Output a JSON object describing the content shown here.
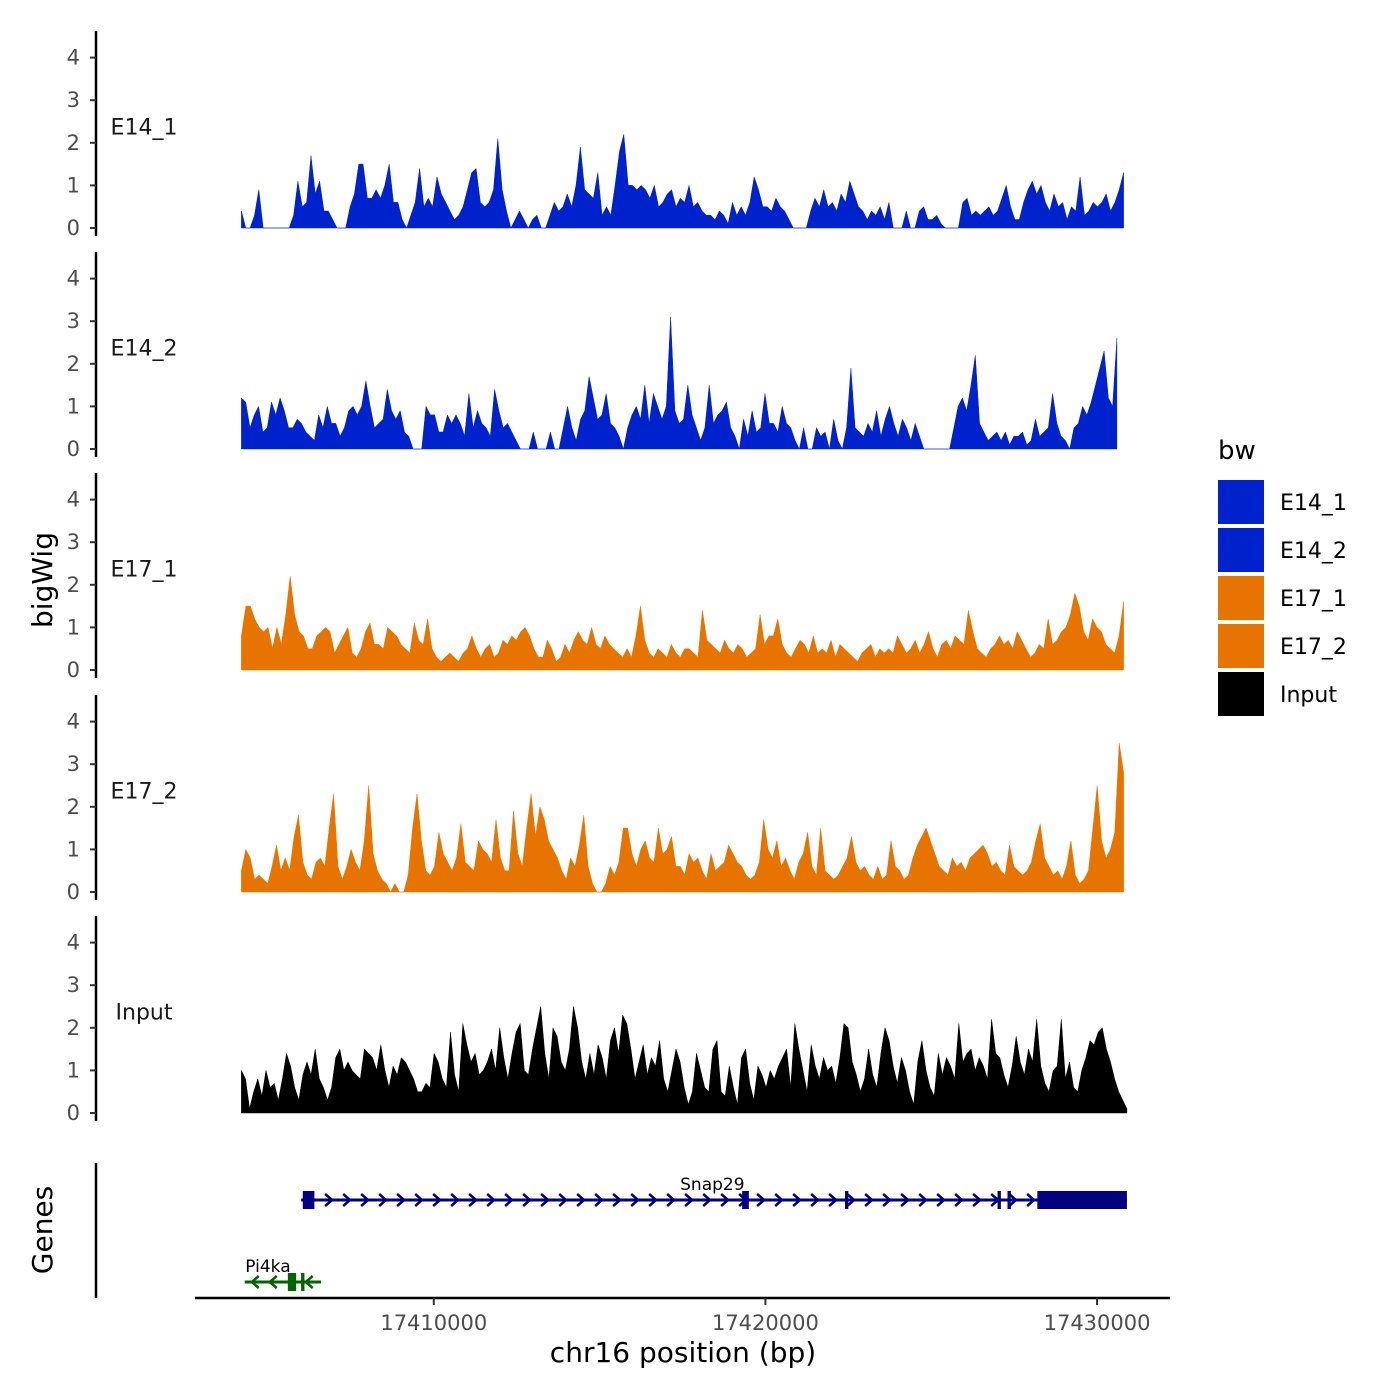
{
  "chart_data": {
    "type": "area",
    "chromosome": "chr16",
    "xlabel": "chr16 position (bp)",
    "ylabel": "bigWig",
    "xlim": [
      17402800,
      17432200
    ],
    "x_ticks": [
      17410000,
      17420000,
      17430000
    ],
    "x_tick_labels": [
      "17410000",
      "17420000",
      "17430000"
    ],
    "ylim": [
      0,
      4.5
    ],
    "y_ticks": [
      0,
      1,
      2,
      3,
      4
    ],
    "y_tick_labels": [
      "0",
      "1",
      "2",
      "3",
      "4"
    ],
    "legend": {
      "title": "bw",
      "position": "right",
      "entries": [
        {
          "label": "E14_1",
          "color": "#0022cc"
        },
        {
          "label": "E14_2",
          "color": "#0022cc"
        },
        {
          "label": "E17_1",
          "color": "#e87400"
        },
        {
          "label": "E17_2",
          "color": "#e87400"
        },
        {
          "label": "Input",
          "color": "#000000"
        }
      ]
    },
    "tracks": [
      {
        "name": "E14_1",
        "color": "#0022cc",
        "start": 17404200,
        "end": 17430800,
        "values": [
          0.4,
          0,
          0,
          0.3,
          0.9,
          0,
          0,
          0,
          0,
          0,
          0,
          0,
          0.3,
          1.1,
          0.5,
          0.6,
          1.7,
          0.8,
          1.1,
          0.4,
          0.4,
          0.2,
          0,
          0,
          0,
          0.5,
          0.8,
          1.5,
          1.5,
          0.7,
          0.7,
          0.9,
          0.7,
          1.0,
          1.5,
          0.6,
          0.6,
          0.2,
          0,
          0.3,
          0.6,
          1.4,
          0.5,
          0.7,
          0.5,
          1.2,
          0.8,
          0.6,
          0.4,
          0.2,
          0.3,
          0.5,
          0.9,
          1.3,
          1.4,
          0.6,
          0.5,
          0.6,
          0.9,
          2.1,
          0.9,
          0.4,
          0,
          0.2,
          0.4,
          0.2,
          0,
          0.2,
          0.3,
          0,
          0,
          0.3,
          0.6,
          0.4,
          0.5,
          0.8,
          0.5,
          1.0,
          1.9,
          0.9,
          0.8,
          0.7,
          1.3,
          0.3,
          0.5,
          0.3,
          1.0,
          1.8,
          2.2,
          1.0,
          1.0,
          0.9,
          1.0,
          0.9,
          0.7,
          1.0,
          0.5,
          0.6,
          0.8,
          0.9,
          0.5,
          0.7,
          0.6,
          1.0,
          0.5,
          0.6,
          0.4,
          0.3,
          0.3,
          0.2,
          0.4,
          0.3,
          0.1,
          0.6,
          0.3,
          0.5,
          0.3,
          0.6,
          1.2,
          0.9,
          0.5,
          0.5,
          0.4,
          0.7,
          0.5,
          0.4,
          0.2,
          0,
          0,
          0,
          0,
          0.4,
          0.7,
          0.5,
          0.9,
          0.5,
          0.6,
          0.4,
          0.8,
          0.6,
          1.1,
          0.8,
          0.5,
          0.4,
          0.2,
          0.4,
          0.3,
          0.5,
          0.2,
          0.6,
          0,
          0,
          0,
          0.4,
          0,
          0,
          0.4,
          0.5,
          0.2,
          0.2,
          0.3,
          0.1,
          0,
          0,
          0,
          0,
          0.6,
          0.7,
          0.3,
          0.4,
          0.3,
          0.4,
          0.5,
          0.3,
          0.4,
          0.7,
          1.0,
          0.5,
          0.2,
          0.2,
          0.6,
          0.9,
          1.1,
          0.8,
          1.0,
          0.6,
          0.4,
          0.8,
          0.5,
          0.6,
          0.2,
          0.5,
          0.4,
          1.2,
          0.3,
          0.4,
          0.6,
          0.5,
          0.6,
          0.8,
          0.4,
          0.6,
          0.9,
          1.3
        ]
      },
      {
        "name": "E14_2",
        "color": "#0022cc",
        "start": 17404200,
        "end": 17430600,
        "values": [
          1.2,
          1.1,
          0.5,
          0.8,
          1.0,
          0.4,
          0.5,
          1.1,
          0.8,
          1.2,
          0.9,
          0.5,
          0.5,
          0.7,
          0.6,
          0.4,
          0.3,
          0.2,
          0.8,
          0.5,
          1.0,
          0.6,
          0.6,
          0.3,
          0.5,
          0.9,
          1.0,
          0.8,
          1.0,
          1.6,
          1.0,
          0.5,
          0.6,
          0.7,
          1.4,
          0.9,
          0.7,
          0.9,
          0.4,
          0.3,
          0,
          0,
          0,
          1.0,
          0.8,
          0.8,
          0.4,
          0.4,
          0.8,
          0.6,
          0.8,
          0.6,
          0.3,
          1.3,
          0.5,
          0.9,
          0.6,
          0.5,
          0.3,
          1.4,
          0.9,
          0.5,
          0.6,
          0.4,
          0.2,
          0,
          0,
          0,
          0.4,
          0,
          0,
          0,
          0.4,
          0,
          0,
          0.5,
          1.0,
          0.5,
          0.2,
          0.7,
          0.9,
          1.7,
          1.2,
          0.7,
          0.8,
          1.3,
          0.6,
          0.5,
          0.3,
          0,
          0.5,
          0.8,
          1.0,
          0.7,
          1.5,
          0.6,
          1.3,
          1.0,
          0.7,
          1.0,
          3.1,
          0.9,
          0.6,
          0.7,
          1.5,
          0.8,
          0.5,
          0.2,
          0.5,
          1.5,
          0.6,
          0.8,
          0.9,
          1.1,
          0.5,
          0.3,
          0,
          0.7,
          0.3,
          0.9,
          0.4,
          0.5,
          1.3,
          0.6,
          0.6,
          0.4,
          1.0,
          0.6,
          0.5,
          0.2,
          0,
          0.5,
          0,
          0,
          0.5,
          0.3,
          0.4,
          0,
          0.7,
          0.2,
          0,
          0.5,
          1.9,
          0.5,
          0.4,
          0.3,
          0.6,
          0.4,
          0.9,
          0.3,
          0.7,
          1.0,
          0.6,
          0.3,
          0.7,
          0.5,
          0.2,
          0.6,
          0.3,
          0,
          0,
          0,
          0,
          0,
          0,
          0,
          0.5,
          1.0,
          1.2,
          0.9,
          1.5,
          2.2,
          0.6,
          0.4,
          0.2,
          0.3,
          0.4,
          0.2,
          0.4,
          0.1,
          0.3,
          0.3,
          0.4,
          0.1,
          0.2,
          0.7,
          0.3,
          0.4,
          0.5,
          1.3,
          0.6,
          0.3,
          0.2,
          0,
          0.5,
          0.6,
          1.0,
          0.8,
          1.1,
          1.5,
          1.9,
          2.3,
          1.2,
          1.0,
          2.6
        ]
      },
      {
        "name": "E17_1",
        "color": "#e87400",
        "start": 17404200,
        "end": 17430800,
        "values": [
          0.8,
          1.5,
          1.5,
          1.2,
          1.0,
          0.9,
          1.0,
          0.5,
          1.0,
          0.6,
          1.3,
          2.2,
          1.3,
          0.9,
          0.8,
          0.5,
          0.5,
          0.8,
          0.9,
          1.0,
          0.9,
          0.4,
          0.6,
          0.8,
          1.0,
          0.4,
          0.3,
          0.5,
          0.9,
          1.1,
          0.6,
          0.6,
          0.5,
          1.0,
          0.9,
          0.8,
          0.6,
          0.5,
          0.4,
          1.1,
          0.7,
          0.6,
          1.2,
          0.5,
          0.3,
          0.2,
          0.3,
          0.4,
          0.3,
          0.2,
          0.4,
          0.5,
          0.8,
          0.5,
          0.3,
          0.5,
          0.6,
          0.3,
          0.4,
          0.7,
          0.6,
          0.8,
          0.7,
          0.9,
          1.0,
          0.8,
          0.5,
          0.3,
          0.3,
          0.7,
          0.5,
          0.2,
          0.3,
          0.6,
          0.4,
          0.7,
          0.9,
          0.7,
          0.6,
          1.0,
          0.6,
          0.5,
          0.8,
          0.6,
          0.5,
          0.4,
          0.3,
          0.5,
          0.3,
          0.8,
          1.5,
          0.7,
          0.4,
          0.3,
          0.5,
          0.4,
          0.3,
          0.6,
          0.4,
          0.3,
          0.5,
          0.5,
          0.4,
          0.3,
          1.4,
          0.7,
          0.6,
          0.5,
          0.4,
          0.7,
          0.5,
          0.4,
          0.6,
          0.5,
          0.3,
          0.4,
          0.5,
          1.3,
          0.6,
          0.8,
          0.8,
          1.2,
          0.6,
          0.4,
          0.3,
          0.5,
          0.7,
          0.6,
          0.4,
          0.8,
          0.4,
          0.5,
          0.4,
          0.7,
          0.3,
          0.6,
          0.5,
          0.4,
          0.3,
          0.2,
          0.4,
          0.5,
          0.6,
          0.3,
          0.5,
          0.4,
          0.5,
          0.4,
          0.8,
          0.6,
          0.4,
          0.5,
          0.7,
          0.4,
          0.6,
          0.9,
          0.5,
          0.3,
          0.6,
          0.7,
          0.5,
          0.8,
          0.7,
          0.6,
          1.4,
          0.9,
          0.5,
          0.4,
          0.3,
          0.5,
          0.6,
          0.8,
          0.6,
          0.7,
          0.5,
          0.9,
          0.7,
          0.5,
          0.3,
          0.4,
          0.6,
          0.5,
          1.2,
          0.6,
          0.7,
          0.9,
          1.0,
          1.3,
          1.8,
          1.5,
          0.9,
          0.7,
          1.2,
          1.0,
          0.9,
          0.6,
          0.5,
          0.4,
          0.8,
          1.6
        ]
      },
      {
        "name": "E17_2",
        "color": "#e87400",
        "start": 17404200,
        "end": 17430800,
        "values": [
          0.5,
          1.0,
          0.8,
          0.3,
          0.4,
          0.3,
          0.2,
          0.6,
          1.1,
          0.5,
          0.8,
          0.5,
          1.3,
          1.8,
          0.7,
          0.4,
          0.3,
          0.7,
          0.8,
          0.6,
          1.5,
          2.3,
          0.6,
          0.3,
          0.6,
          1.0,
          0.7,
          0.5,
          1.2,
          2.5,
          0.9,
          0.5,
          0.3,
          0.2,
          0,
          0.2,
          0,
          0,
          0.4,
          1.5,
          2.3,
          1.2,
          0.5,
          0.4,
          0.6,
          1.4,
          0.9,
          0.7,
          0.5,
          0.8,
          1.6,
          0.7,
          0.6,
          0.5,
          1.2,
          1.0,
          0.9,
          0.7,
          1.7,
          0.8,
          0.5,
          0.5,
          1.9,
          0.9,
          0.6,
          1.5,
          2.3,
          1.3,
          2.0,
          1.7,
          1.2,
          1.0,
          0.8,
          0.5,
          0.3,
          0.8,
          0.6,
          1.1,
          1.8,
          0.6,
          0.2,
          0,
          0,
          0.2,
          0.6,
          0.4,
          0.7,
          1.5,
          1.5,
          0.9,
          0.6,
          1.0,
          1.2,
          0.8,
          0.7,
          1.5,
          0.9,
          1.0,
          1.3,
          0.6,
          0.6,
          0.4,
          0.9,
          0.7,
          0.8,
          0.5,
          0.3,
          0.9,
          0.5,
          0.6,
          0.7,
          1.1,
          0.9,
          0.7,
          0.6,
          0.4,
          0.3,
          0.4,
          0.7,
          1.7,
          1.0,
          0.8,
          1.2,
          0.6,
          0.8,
          0.5,
          0.3,
          0.7,
          0.9,
          1.4,
          0.6,
          0.4,
          1.5,
          0.5,
          0.4,
          0.3,
          0.4,
          0.6,
          0.8,
          1.3,
          0.7,
          0.5,
          0.6,
          0.4,
          0.3,
          0.6,
          0.3,
          0.4,
          1.2,
          0.6,
          0.5,
          0.3,
          0.4,
          0.8,
          1.1,
          1.3,
          1.5,
          1.2,
          0.9,
          0.6,
          0.5,
          0.4,
          0.8,
          0.6,
          0.7,
          0.5,
          0.8,
          0.9,
          1.0,
          1.1,
          0.9,
          0.6,
          0.7,
          0.5,
          0.4,
          1.1,
          0.6,
          0.5,
          0.4,
          0.5,
          0.7,
          1.2,
          1.6,
          0.8,
          0.6,
          0.4,
          0.5,
          0.3,
          0.6,
          1.2,
          0.4,
          0.2,
          0.3,
          0.5,
          1.5,
          2.5,
          1.2,
          0.8,
          1.0,
          1.4,
          3.5,
          2.8
        ]
      },
      {
        "name": "Input",
        "color": "#000000",
        "start": 17404200,
        "end": 17430900,
        "values": [
          1.0,
          0.8,
          0.1,
          0.5,
          0.8,
          0.4,
          1.0,
          0.6,
          0.7,
          0.3,
          0.8,
          1.4,
          1.1,
          0.6,
          0.3,
          0.9,
          1.2,
          0.9,
          1.5,
          0.8,
          0.6,
          0.3,
          0.6,
          1.3,
          1.5,
          1.0,
          1.2,
          1.0,
          0.9,
          0.8,
          1.5,
          1.4,
          1.3,
          1.0,
          1.6,
          1.0,
          0.6,
          1.1,
          0.9,
          1.3,
          1.2,
          1.0,
          0.8,
          0.5,
          0.5,
          0.7,
          0.6,
          1.4,
          1.2,
          0.8,
          0.6,
          1.9,
          0.9,
          0.5,
          2.1,
          1.6,
          1.2,
          1.4,
          0.9,
          1.0,
          1.2,
          1.5,
          1.0,
          2.0,
          1.3,
          0.8,
          1.4,
          1.9,
          2.1,
          1.0,
          0.9,
          1.5,
          2.0,
          2.5,
          1.4,
          0.8,
          2.0,
          1.8,
          1.2,
          1.0,
          1.5,
          2.5,
          2.0,
          1.2,
          0.8,
          1.4,
          0.9,
          1.6,
          1.3,
          0.8,
          1.7,
          2.0,
          1.4,
          2.3,
          2.1,
          1.5,
          0.8,
          1.2,
          1.6,
          0.9,
          1.3,
          1.1,
          1.7,
          0.8,
          0.5,
          1.0,
          1.5,
          1.2,
          0.6,
          0.2,
          0.5,
          1.4,
          1.0,
          0.6,
          0.5,
          1.5,
          1.7,
          0.5,
          0.4,
          1.1,
          0.6,
          0.2,
          1.3,
          1.5,
          0.7,
          0.3,
          1.1,
          0.9,
          0.6,
          1.0,
          0.8,
          1.1,
          1.3,
          1.5,
          0.6,
          2.1,
          1.5,
          1.0,
          0.5,
          1.6,
          1.1,
          0.8,
          1.3,
          1.0,
          1.1,
          0.7,
          1.3,
          2.1,
          2.0,
          1.2,
          0.9,
          0.5,
          0.8,
          1.5,
          0.9,
          0.6,
          1.4,
          2.0,
          1.7,
          1.1,
          0.7,
          1.3,
          1.0,
          0.5,
          0.2,
          1.2,
          1.7,
          1.0,
          0.6,
          0.4,
          1.4,
          0.9,
          1.3,
          1.1,
          0.8,
          2.1,
          1.2,
          1.4,
          1.5,
          1.0,
          1.3,
          1.1,
          0.8,
          2.2,
          1.4,
          1.3,
          0.9,
          0.6,
          1.1,
          1.8,
          1.2,
          0.9,
          1.5,
          1.2,
          2.2,
          1.1,
          0.7,
          0.5,
          1.0,
          1.1,
          2.2,
          0.8,
          1.2,
          0.6,
          0.5,
          1.0,
          1.3,
          1.7,
          1.6,
          1.9,
          2.0,
          1.5,
          1.2,
          0.8,
          0.5,
          0.3,
          0.1
        ]
      }
    ],
    "genes": {
      "label": "Genes",
      "items": [
        {
          "name": "Snap29",
          "strand": "+",
          "color": "#000080",
          "start": 17406000,
          "end": 17430900,
          "exons": [
            [
              17406050,
              17406400
            ],
            [
              17419300,
              17419500
            ],
            [
              17422400,
              17422500
            ],
            [
              17427000,
              17427100
            ],
            [
              17427300,
              17427400
            ],
            [
              17428200,
              17430900
            ]
          ]
        },
        {
          "name": "Pi4ka",
          "strand": "-",
          "color": "#006400",
          "start": 17404300,
          "end": 17406600,
          "exons": [
            [
              17405600,
              17405850
            ],
            [
              17406000,
              17406100
            ]
          ]
        }
      ]
    }
  }
}
